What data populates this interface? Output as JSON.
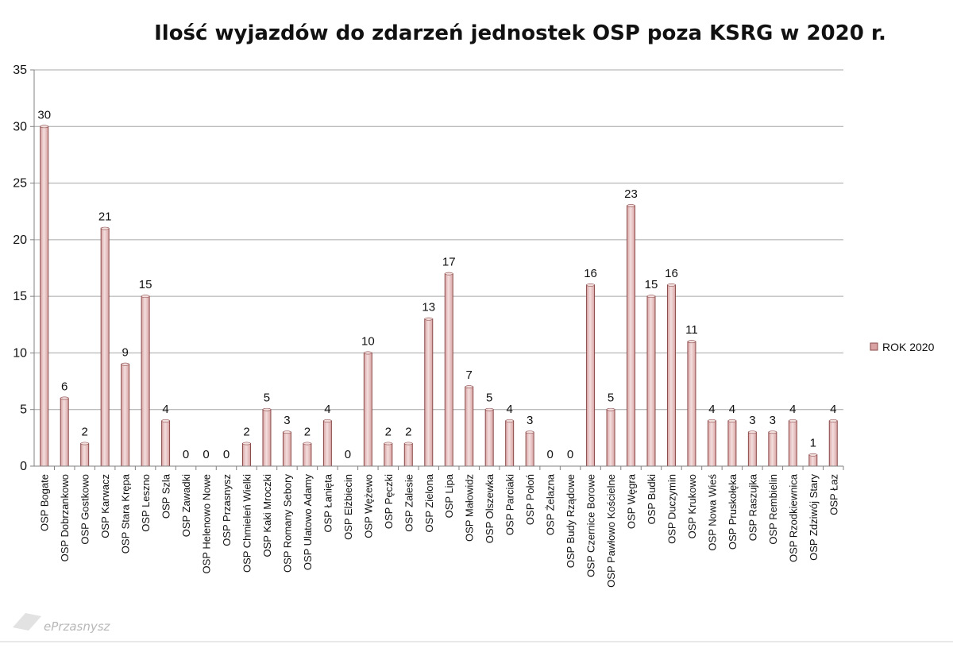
{
  "chart_data": {
    "type": "bar",
    "title": "Ilość wyjazdów do zdarzeń jednostek OSP poza KSRG w 2020 r.",
    "xlabel": "",
    "ylabel": "",
    "ylim": [
      0,
      35
    ],
    "yticks": [
      0,
      5,
      10,
      15,
      20,
      25,
      30,
      35
    ],
    "grid": true,
    "legend_position": "right",
    "categories": [
      "OSP Bogate",
      "OSP Dobrzankowo",
      "OSP Gostkowo",
      "OSP Karwacz",
      "OSP Stara Krępa",
      "OSP Leszno",
      "OSP Szla",
      "OSP Zawadki",
      "OSP Helenowo Nowe",
      "OSP Przasnysz",
      "OSP Chmieleń Wielki",
      "OSP Kaki Mroczki",
      "OSP Romany Sebory",
      "OSP Ulatowo Adamy",
      "OSP Łanięta",
      "OSP Elżbiecin",
      "OSP Wężewo",
      "OSP Pęczki",
      "OSP Zalesie",
      "OSP Zielona",
      "OSP Lipa",
      "OSP Małowidz",
      "OSP Olszewka",
      "OSP Parciaki",
      "OSP Połoń",
      "OSP Żelazna",
      "OSP Budy Rządowe",
      "OSP Czernice Borowe",
      "OSP Pawłowo Kościelne",
      "OSP Węgra",
      "OSP Budki",
      "OSP Duczymin",
      "OSP Krukowo",
      "OSP Nowa Wieś",
      "OSP Pruskołęka",
      "OSP Raszujka",
      "OSP Rembielin",
      "OSP Rzodkiewnica",
      "OSP Zdziwój Stary",
      "OSP Łaz"
    ],
    "series": [
      {
        "name": "ROK 2020",
        "values": [
          30,
          6,
          2,
          21,
          9,
          15,
          4,
          0,
          0,
          0,
          2,
          5,
          3,
          2,
          4,
          0,
          10,
          2,
          2,
          13,
          17,
          7,
          5,
          4,
          3,
          0,
          0,
          16,
          5,
          23,
          15,
          16,
          11,
          4,
          4,
          3,
          3,
          4,
          1,
          4
        ]
      }
    ]
  },
  "colors": {
    "bar_fill": "#d9a3a3",
    "bar_edge": "#8b4a4a",
    "bar_highlight": "#f3dede",
    "grid": "#a6a6a6",
    "axis": "#808080"
  },
  "watermark": "ePrzasnysz"
}
